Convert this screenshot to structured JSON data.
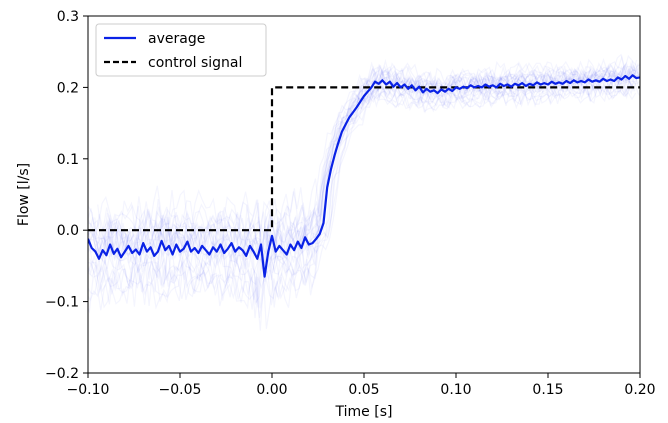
{
  "chart_data": {
    "type": "line",
    "xlabel": "Time [s]",
    "ylabel": "Flow [l/s]",
    "xlim": [
      -0.1,
      0.2
    ],
    "ylim": [
      -0.2,
      0.3
    ],
    "xticks": [
      -0.1,
      -0.05,
      0.0,
      0.05,
      0.1,
      0.15,
      0.2
    ],
    "xtick_labels": [
      "−0.10",
      "−0.05",
      "0.00",
      "0.05",
      "0.10",
      "0.15",
      "0.20"
    ],
    "yticks": [
      -0.2,
      -0.1,
      0.0,
      0.1,
      0.2,
      0.3
    ],
    "ytick_labels": [
      "−0.2",
      "−0.1",
      "0.0",
      "0.1",
      "0.2",
      "0.3"
    ],
    "grid": false,
    "legend_position": "top-left",
    "series": [
      {
        "name": "average",
        "color": "#0a22e6",
        "style": "solid",
        "x": [
          -0.1,
          -0.098,
          -0.096,
          -0.094,
          -0.092,
          -0.09,
          -0.088,
          -0.086,
          -0.084,
          -0.082,
          -0.08,
          -0.078,
          -0.076,
          -0.074,
          -0.072,
          -0.07,
          -0.068,
          -0.066,
          -0.064,
          -0.062,
          -0.06,
          -0.058,
          -0.056,
          -0.054,
          -0.052,
          -0.05,
          -0.048,
          -0.046,
          -0.044,
          -0.042,
          -0.04,
          -0.038,
          -0.036,
          -0.034,
          -0.032,
          -0.03,
          -0.028,
          -0.026,
          -0.024,
          -0.022,
          -0.02,
          -0.018,
          -0.016,
          -0.014,
          -0.012,
          -0.01,
          -0.008,
          -0.006,
          -0.004,
          -0.002,
          0.0,
          0.002,
          0.004,
          0.006,
          0.008,
          0.01,
          0.012,
          0.014,
          0.016,
          0.018,
          0.02,
          0.022,
          0.024,
          0.026,
          0.028,
          0.03,
          0.032,
          0.034,
          0.036,
          0.038,
          0.04,
          0.042,
          0.044,
          0.046,
          0.048,
          0.05,
          0.052,
          0.054,
          0.056,
          0.058,
          0.06,
          0.062,
          0.064,
          0.066,
          0.068,
          0.07,
          0.072,
          0.074,
          0.076,
          0.078,
          0.08,
          0.082,
          0.084,
          0.086,
          0.088,
          0.09,
          0.092,
          0.094,
          0.096,
          0.098,
          0.1,
          0.102,
          0.104,
          0.106,
          0.108,
          0.11,
          0.112,
          0.114,
          0.116,
          0.118,
          0.12,
          0.122,
          0.124,
          0.126,
          0.128,
          0.13,
          0.132,
          0.134,
          0.136,
          0.138,
          0.14,
          0.142,
          0.144,
          0.146,
          0.148,
          0.15,
          0.152,
          0.154,
          0.156,
          0.158,
          0.16,
          0.162,
          0.164,
          0.166,
          0.168,
          0.17,
          0.172,
          0.174,
          0.176,
          0.178,
          0.18,
          0.182,
          0.184,
          0.186,
          0.188,
          0.19,
          0.192,
          0.194,
          0.196,
          0.198,
          0.2
        ],
        "y": [
          -0.012,
          -0.025,
          -0.03,
          -0.04,
          -0.028,
          -0.035,
          -0.02,
          -0.033,
          -0.026,
          -0.038,
          -0.03,
          -0.022,
          -0.032,
          -0.027,
          -0.034,
          -0.018,
          -0.03,
          -0.024,
          -0.036,
          -0.03,
          -0.015,
          -0.028,
          -0.022,
          -0.034,
          -0.02,
          -0.03,
          -0.026,
          -0.016,
          -0.03,
          -0.025,
          -0.032,
          -0.022,
          -0.028,
          -0.034,
          -0.024,
          -0.03,
          -0.02,
          -0.032,
          -0.026,
          -0.018,
          -0.03,
          -0.024,
          -0.028,
          -0.036,
          -0.022,
          -0.03,
          -0.04,
          -0.02,
          -0.065,
          -0.03,
          -0.008,
          -0.03,
          -0.022,
          -0.028,
          -0.034,
          -0.02,
          -0.028,
          -0.016,
          -0.025,
          -0.01,
          -0.02,
          -0.018,
          -0.012,
          -0.005,
          0.01,
          0.06,
          0.085,
          0.105,
          0.122,
          0.138,
          0.148,
          0.158,
          0.165,
          0.172,
          0.18,
          0.188,
          0.194,
          0.2,
          0.208,
          0.205,
          0.21,
          0.204,
          0.208,
          0.201,
          0.206,
          0.2,
          0.204,
          0.198,
          0.203,
          0.196,
          0.201,
          0.193,
          0.198,
          0.194,
          0.196,
          0.192,
          0.197,
          0.194,
          0.198,
          0.195,
          0.2,
          0.198,
          0.201,
          0.199,
          0.203,
          0.2,
          0.202,
          0.2,
          0.204,
          0.201,
          0.203,
          0.2,
          0.205,
          0.202,
          0.204,
          0.201,
          0.205,
          0.203,
          0.206,
          0.202,
          0.205,
          0.203,
          0.207,
          0.204,
          0.206,
          0.204,
          0.208,
          0.205,
          0.207,
          0.205,
          0.209,
          0.206,
          0.21,
          0.207,
          0.209,
          0.207,
          0.211,
          0.208,
          0.21,
          0.208,
          0.212,
          0.209,
          0.211,
          0.209,
          0.214,
          0.211,
          0.216,
          0.212,
          0.217,
          0.213,
          0.214
        ]
      },
      {
        "name": "control signal",
        "color": "#000000",
        "style": "dashed",
        "x": [
          -0.1,
          0.0,
          0.0,
          0.2
        ],
        "y": [
          0.0,
          0.0,
          0.2,
          0.2
        ]
      }
    ]
  }
}
